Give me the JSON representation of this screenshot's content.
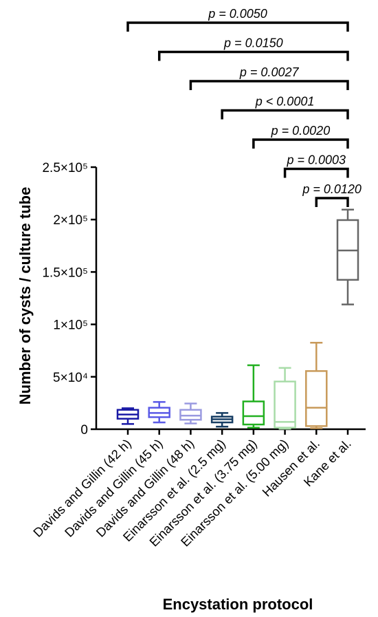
{
  "chart_data": {
    "type": "box",
    "xlabel": "Encystation protocol",
    "ylabel": "Number of cysts / culture tube",
    "ylim": [
      0,
      250000
    ],
    "ytick_values": [
      0,
      50000,
      100000,
      150000,
      200000,
      250000
    ],
    "ytick_labels": [
      "0",
      "5×10⁴",
      "1×10⁵",
      "1.5×10⁵",
      "2×10⁵",
      "2.5×10⁵"
    ],
    "categories": [
      "Davids and Gillin (42 h)",
      "Davids and Gillin (45 h)",
      "Davids and Gillin (48 h)",
      "Einarsson et al. (2.5 mg)",
      "Einarsson et al. (3.75 mg)",
      "Einarsson et al. (5.00 mg)",
      "Hausen et al.",
      "Kane et al."
    ],
    "boxes": [
      {
        "min": 5000,
        "q1": 10000,
        "median": 14000,
        "q3": 18500,
        "max": 20000,
        "color": "#1a1aa6"
      },
      {
        "min": 6500,
        "q1": 11500,
        "median": 15500,
        "q3": 20500,
        "max": 26000,
        "color": "#5a5ae6"
      },
      {
        "min": 5500,
        "q1": 9000,
        "median": 13000,
        "q3": 18500,
        "max": 24500,
        "color": "#9a9ae0"
      },
      {
        "min": 2500,
        "q1": 6500,
        "median": 9500,
        "q3": 12000,
        "max": 15500,
        "color": "#163d63"
      },
      {
        "min": 1500,
        "q1": 4500,
        "median": 12500,
        "q3": 26500,
        "max": 61000,
        "color": "#22b020"
      },
      {
        "min": 500,
        "q1": 1500,
        "median": 7000,
        "q3": 45500,
        "max": 58500,
        "color": "#a8dca8"
      },
      {
        "min": 1000,
        "q1": 3000,
        "median": 20500,
        "q3": 55500,
        "max": 82500,
        "color": "#c89a5a"
      },
      {
        "min": 119000,
        "q1": 142500,
        "median": 170500,
        "q3": 199500,
        "max": 209500,
        "color": "#666666"
      }
    ],
    "comparisons": [
      {
        "from": 0,
        "to": 7,
        "label": "p = 0.0050"
      },
      {
        "from": 1,
        "to": 7,
        "label": "p = 0.0150"
      },
      {
        "from": 2,
        "to": 7,
        "label": "p = 0.0027"
      },
      {
        "from": 3,
        "to": 7,
        "label": "p < 0.0001"
      },
      {
        "from": 4,
        "to": 7,
        "label": "p = 0.0020"
      },
      {
        "from": 5,
        "to": 7,
        "label": "p = 0.0003"
      },
      {
        "from": 6,
        "to": 7,
        "label": "p = 0.0120"
      }
    ]
  }
}
